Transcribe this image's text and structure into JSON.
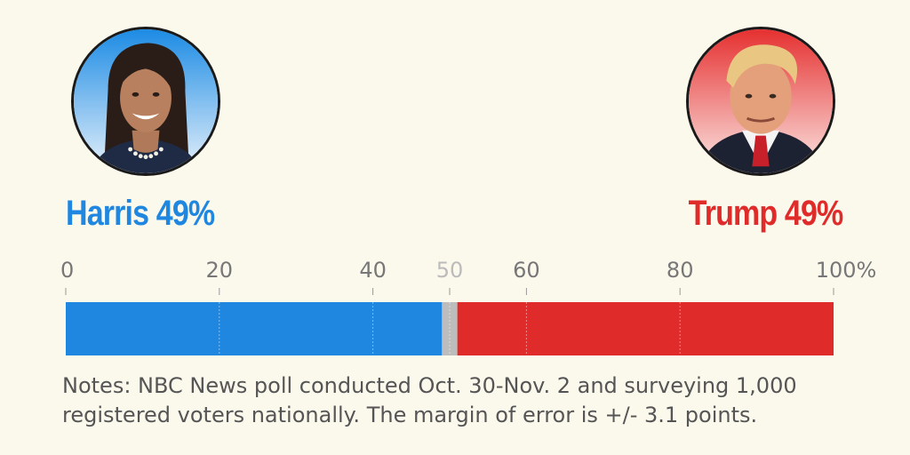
{
  "candidates": {
    "left": {
      "label": "Harris 49%",
      "color": "#1f87e0"
    },
    "right": {
      "label": "Trump 49%",
      "color": "#e02b2b"
    }
  },
  "chart_data": {
    "type": "bar",
    "orientation": "horizontal-stacked",
    "xlim": [
      0,
      100
    ],
    "ticks": [
      {
        "value": 0,
        "label": "0",
        "color": "#777777"
      },
      {
        "value": 20,
        "label": "20",
        "color": "#777777"
      },
      {
        "value": 40,
        "label": "40",
        "color": "#777777"
      },
      {
        "value": 50,
        "label": "50",
        "color": "#bbbbbb"
      },
      {
        "value": 60,
        "label": "60",
        "color": "#777777"
      },
      {
        "value": 80,
        "label": "80",
        "color": "#777777"
      },
      {
        "value": 100,
        "label": "100%",
        "color": "#777777"
      }
    ],
    "segments": [
      {
        "value": 49,
        "color": "#1f87e0"
      },
      {
        "value": 2,
        "color": "#bdbdbd"
      },
      {
        "value": 49,
        "color": "#e02b2b"
      }
    ],
    "grid": true
  },
  "notes": {
    "line1": "Notes: NBC News poll conducted Oct. 30-Nov. 2 and surveying 1,000",
    "line2": "registered voters nationally. The margin of error is +/- 3.1 points."
  }
}
